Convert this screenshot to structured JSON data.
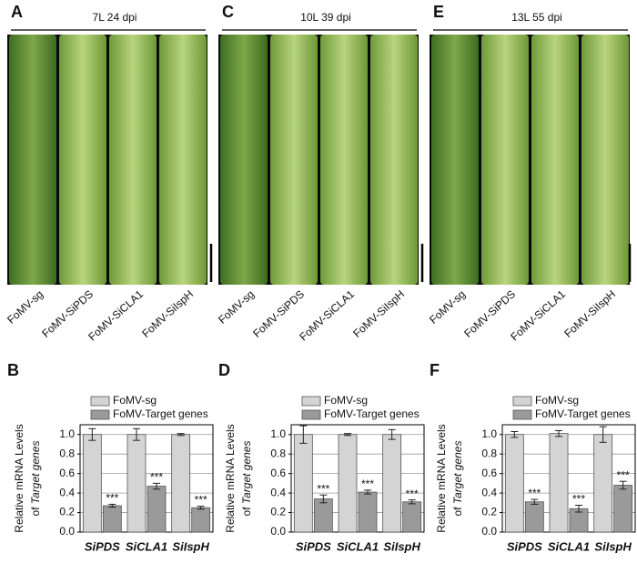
{
  "panels": [
    {
      "letter": "A",
      "header": "7L  24 dpi",
      "labels": [
        "FoMV-sg",
        "FoMV-SiPDS",
        "FoMV-SiCLA1",
        "FoMV-SiIspH"
      ]
    },
    {
      "letter": "C",
      "header": "10L  39 dpi",
      "labels": [
        "FoMV-sg",
        "FoMV-SiPDS",
        "FoMV-SiCLA1",
        "FoMV-SiIspH"
      ]
    },
    {
      "letter": "E",
      "header": "13L  55 dpi",
      "labels": [
        "FoMV-sg",
        "FoMV-SiPDS",
        "FoMV-SiCLA1",
        "FoMV-SiIspH"
      ]
    }
  ],
  "chart_data": [
    {
      "type": "bar",
      "letter": "B",
      "ylabel": [
        "Relative mRNA Levels",
        "of",
        "Target genes"
      ],
      "categories": [
        "SiPDS",
        "SiCLA1",
        "SiIspH"
      ],
      "series": [
        {
          "name": "FoMV-sg",
          "color": "#d4d4d4",
          "values": [
            1.0,
            1.0,
            1.0
          ],
          "errors": [
            0.06,
            0.06,
            0.01
          ]
        },
        {
          "name": "FoMV-Target genes",
          "color": "#9a9a9a",
          "values": [
            0.27,
            0.47,
            0.25
          ],
          "errors": [
            0.015,
            0.03,
            0.015
          ],
          "annotations": [
            "***",
            "***",
            "***"
          ]
        }
      ],
      "ylim": [
        0,
        1.1
      ],
      "yticks": [
        {
          "value": 0,
          "label": "0.0"
        },
        0.2,
        0.4,
        0.6,
        0.8,
        {
          "value": 1,
          "label": "1.0"
        }
      ],
      "grid": true
    },
    {
      "type": "bar",
      "letter": "D",
      "ylabel": [
        "Relative mRNA Levels",
        "of",
        "Target genes"
      ],
      "categories": [
        "SiPDS",
        "SiCLA1",
        "SiIspH"
      ],
      "series": [
        {
          "name": "FoMV-sg",
          "color": "#d4d4d4",
          "values": [
            1.0,
            1.0,
            1.0
          ],
          "errors": [
            0.09,
            0.01,
            0.05
          ]
        },
        {
          "name": "FoMV-Target genes",
          "color": "#9a9a9a",
          "values": [
            0.34,
            0.41,
            0.31
          ],
          "errors": [
            0.04,
            0.02,
            0.02
          ],
          "annotations": [
            "***",
            "***",
            "***"
          ]
        }
      ],
      "ylim": [
        0,
        1.1
      ],
      "yticks": [
        {
          "value": 0,
          "label": "0.0"
        },
        0.2,
        0.4,
        0.6,
        0.8,
        {
          "value": 1,
          "label": "1.0"
        }
      ],
      "grid": true
    },
    {
      "type": "bar",
      "letter": "F",
      "ylabel": [
        "Relative mRNA Levels",
        "of",
        "Target genes"
      ],
      "categories": [
        "SiPDS",
        "SiCLA1",
        "SiIspH"
      ],
      "series": [
        {
          "name": "FoMV-sg",
          "color": "#d4d4d4",
          "values": [
            1.0,
            1.01,
            1.0
          ],
          "errors": [
            0.03,
            0.03,
            0.08
          ]
        },
        {
          "name": "FoMV-Target genes",
          "color": "#9a9a9a",
          "values": [
            0.31,
            0.24,
            0.48
          ],
          "errors": [
            0.025,
            0.035,
            0.04
          ],
          "annotations": [
            "***",
            "***",
            "***"
          ]
        }
      ],
      "ylim": [
        0,
        1.1
      ],
      "yticks": [
        {
          "value": 0,
          "label": "0.0"
        },
        0.2,
        0.4,
        0.6,
        0.8,
        {
          "value": 1,
          "label": "1.0"
        }
      ],
      "grid": true
    }
  ]
}
